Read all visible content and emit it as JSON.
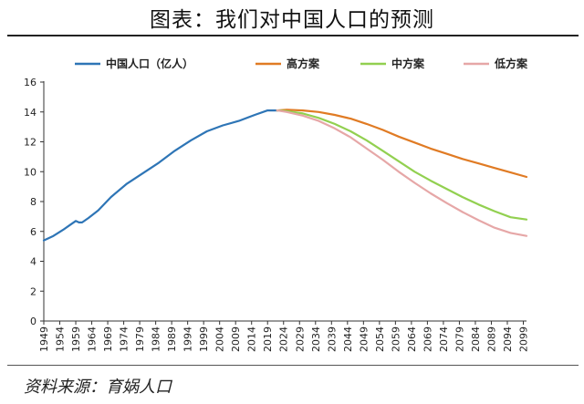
{
  "title": "图表：我们对中国人口的预测",
  "source": "资料来源：育娲人口",
  "chart_data": {
    "type": "line",
    "ylim": [
      0,
      16
    ],
    "yticks": [
      0,
      2,
      4,
      6,
      8,
      10,
      12,
      14,
      16
    ],
    "xlim": [
      1949,
      2100
    ],
    "xticks": [
      "1949",
      "1954",
      "1959",
      "1964",
      "1969",
      "1974",
      "1979",
      "1984",
      "1989",
      "1994",
      "1999",
      "2004",
      "2009",
      "2014",
      "2019",
      "2024",
      "2029",
      "2034",
      "2039",
      "2044",
      "2049",
      "2054",
      "2059",
      "2064",
      "2069",
      "2074",
      "2079",
      "2084",
      "2089",
      "2094",
      "2099"
    ],
    "legend_position": "top",
    "series": [
      {
        "name": "中国人口（亿人）",
        "color": "#2E75B6",
        "x": [
          1949,
          1952,
          1955,
          1957,
          1959,
          1960,
          1961,
          1963,
          1966,
          1970,
          1975,
          1980,
          1985,
          1990,
          1995,
          2000,
          2005,
          2010,
          2015,
          2019,
          2022
        ],
        "y": [
          5.4,
          5.7,
          6.1,
          6.4,
          6.7,
          6.6,
          6.6,
          6.9,
          7.4,
          8.3,
          9.2,
          9.9,
          10.6,
          11.4,
          12.1,
          12.7,
          13.1,
          13.4,
          13.8,
          14.1,
          14.1
        ]
      },
      {
        "name": "高方案",
        "color": "#E07B24",
        "x": [
          2022,
          2025,
          2030,
          2035,
          2040,
          2045,
          2050,
          2055,
          2060,
          2065,
          2070,
          2075,
          2080,
          2085,
          2090,
          2095,
          2100
        ],
        "y": [
          14.1,
          14.15,
          14.1,
          14.0,
          13.8,
          13.55,
          13.2,
          12.8,
          12.35,
          11.95,
          11.55,
          11.2,
          10.85,
          10.55,
          10.25,
          9.95,
          9.65
        ]
      },
      {
        "name": "中方案",
        "color": "#92D050",
        "x": [
          2022,
          2025,
          2030,
          2035,
          2040,
          2045,
          2050,
          2055,
          2060,
          2065,
          2070,
          2075,
          2080,
          2085,
          2090,
          2095,
          2100
        ],
        "y": [
          14.1,
          14.05,
          13.9,
          13.6,
          13.2,
          12.7,
          12.1,
          11.4,
          10.7,
          10.0,
          9.4,
          8.85,
          8.3,
          7.8,
          7.35,
          6.95,
          6.8
        ]
      },
      {
        "name": "低方案",
        "color": "#E6A7A7",
        "x": [
          2022,
          2025,
          2030,
          2035,
          2040,
          2045,
          2050,
          2055,
          2060,
          2065,
          2070,
          2075,
          2080,
          2085,
          2090,
          2095,
          2100
        ],
        "y": [
          14.1,
          14.0,
          13.75,
          13.4,
          12.9,
          12.3,
          11.55,
          10.8,
          10.0,
          9.25,
          8.55,
          7.9,
          7.3,
          6.75,
          6.25,
          5.9,
          5.7
        ]
      }
    ]
  }
}
